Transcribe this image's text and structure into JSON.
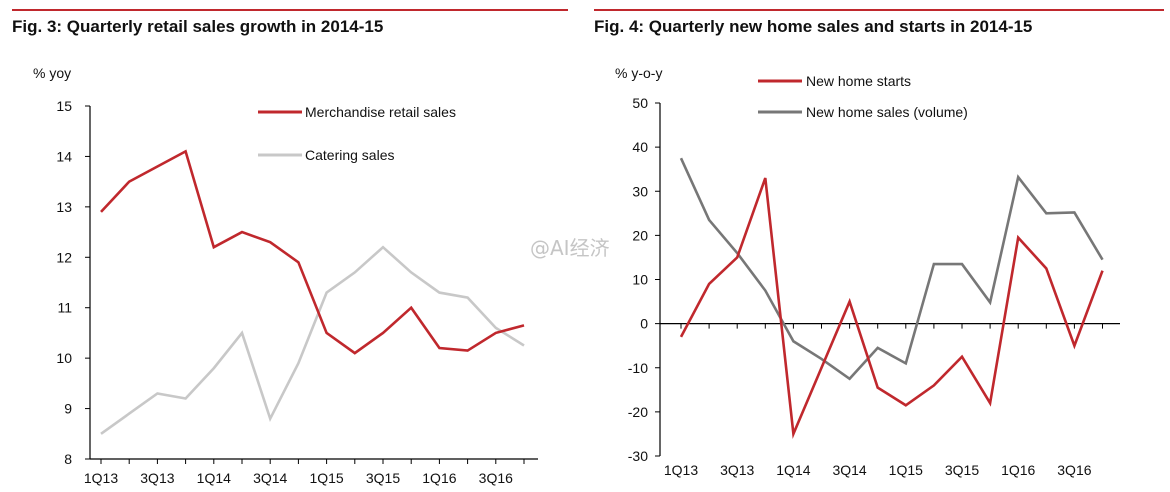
{
  "chart_data": [
    {
      "type": "line",
      "title": "Fig. 3: Quarterly retail sales growth in 2014-15",
      "ylabel": "% yoy",
      "xlabel": "",
      "ylim": [
        8,
        15
      ],
      "yticks": [
        8,
        9,
        10,
        11,
        12,
        13,
        14,
        15
      ],
      "x": [
        "1Q13",
        "2Q13",
        "3Q13",
        "4Q13",
        "1Q14",
        "2Q14",
        "3Q14",
        "4Q14",
        "1Q15",
        "2Q15",
        "3Q15",
        "4Q15",
        "1Q16",
        "2Q16",
        "3Q16",
        "4Q16"
      ],
      "xtick_labels": [
        "1Q13",
        "3Q13",
        "1Q14",
        "3Q14",
        "1Q15",
        "3Q15",
        "1Q16",
        "3Q16"
      ],
      "legend_position": "top-right",
      "grid": false,
      "series": [
        {
          "name": "Merchandise retail sales",
          "color": "#c0282d",
          "values": [
            12.9,
            13.5,
            13.8,
            14.1,
            12.2,
            12.5,
            12.3,
            11.9,
            10.5,
            10.1,
            10.5,
            11.0,
            10.2,
            10.15,
            10.5,
            10.65
          ]
        },
        {
          "name": "Catering sales",
          "color": "#c8c8c8",
          "values": [
            8.5,
            8.9,
            9.3,
            9.2,
            9.8,
            10.5,
            8.8,
            9.9,
            11.3,
            11.7,
            12.2,
            11.7,
            11.3,
            11.2,
            10.6,
            10.25
          ]
        }
      ]
    },
    {
      "type": "line",
      "title": "Fig. 4: Quarterly new home sales and starts in 2014-15",
      "ylabel": "% y-o-y",
      "xlabel": "",
      "ylim": [
        -30,
        50
      ],
      "yticks": [
        -30,
        -20,
        -10,
        0,
        10,
        20,
        30,
        40,
        50
      ],
      "x": [
        "1Q13",
        "2Q13",
        "3Q13",
        "4Q13",
        "1Q14",
        "2Q14",
        "3Q14",
        "4Q14",
        "1Q15",
        "2Q15",
        "3Q15",
        "4Q15",
        "1Q16",
        "2Q16",
        "3Q16",
        "4Q16"
      ],
      "xtick_labels": [
        "1Q13",
        "3Q13",
        "1Q14",
        "3Q14",
        "1Q15",
        "3Q15",
        "1Q16",
        "3Q16"
      ],
      "legend_position": "top-left",
      "grid": false,
      "series": [
        {
          "name": "New home starts",
          "color": "#c0282d",
          "values": [
            -3,
            9,
            15,
            33,
            -25,
            -10,
            5,
            -14.5,
            -18.5,
            -14,
            -7.5,
            -18,
            19.5,
            12.5,
            -5,
            12
          ]
        },
        {
          "name": "New home sales (volume)",
          "color": "#777777",
          "values": [
            37.5,
            23.5,
            16,
            7.5,
            -4,
            -8,
            -12.5,
            -5.5,
            -9,
            13.5,
            13.5,
            4.8,
            33.2,
            25,
            25.2,
            14.5
          ]
        }
      ]
    }
  ],
  "watermark": "@AI经济"
}
